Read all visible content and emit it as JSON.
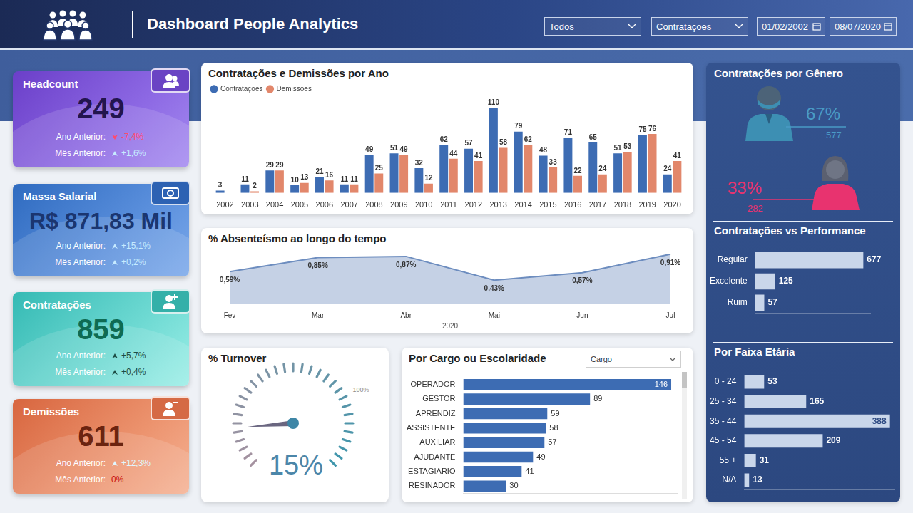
{
  "header": {
    "title": "Dashboard People Analytics",
    "filters": [
      "Todos",
      "Contratações",
      "01/02/2002",
      "08/07/2020"
    ]
  },
  "kpis": [
    {
      "title": "Headcount",
      "value": "249",
      "rows": [
        {
          "label": "Ano Anterior:",
          "value": "-7,4%"
        },
        {
          "label": "Mês Anterior:",
          "value": "+1,6%"
        }
      ]
    },
    {
      "title": "Massa Salarial",
      "value": "R$ 871,83 Mil",
      "rows": [
        {
          "label": "Ano Anterior:",
          "value": "+15,1%"
        },
        {
          "label": "Mês Anterior:",
          "value": "+0,2%"
        }
      ]
    },
    {
      "title": "Contratações",
      "value": "859",
      "rows": [
        {
          "label": "Ano Anterior:",
          "value": "+5,7%"
        },
        {
          "label": "Mês Anterior:",
          "value": "+0,4%"
        }
      ]
    },
    {
      "title": "Demissões",
      "value": "611",
      "rows": [
        {
          "label": "Ano Anterior:",
          "value": "+12,3%"
        },
        {
          "label": "Mês Anterior:",
          "value": "0%"
        }
      ]
    }
  ],
  "turnover": {
    "title": "% Turnover",
    "value": 15,
    "value_label": "15%",
    "max": 100,
    "max_label": "100%"
  },
  "genero": {
    "title": "Contratações por Gênero",
    "items": [
      {
        "percent": "67%",
        "count": "577",
        "color": "#4a9bc6"
      },
      {
        "percent": "33%",
        "count": "282",
        "color": "#e8336f"
      }
    ]
  },
  "chart_data": [
    {
      "type": "bar",
      "title": "Contratações e Demissões por Ano",
      "categories": [
        "2002",
        "2003",
        "2004",
        "2005",
        "2006",
        "2007",
        "2008",
        "2009",
        "2010",
        "2011",
        "2012",
        "2013",
        "2014",
        "2015",
        "2016",
        "2017",
        "2018",
        "2019",
        "2020"
      ],
      "series": [
        {
          "name": "Contratações",
          "color": "#3d6cb3",
          "values": [
            3,
            11,
            29,
            10,
            21,
            11,
            49,
            51,
            32,
            62,
            57,
            110,
            79,
            48,
            71,
            65,
            51,
            75,
            24
          ]
        },
        {
          "name": "Demissões",
          "color": "#e2876b",
          "values": [
            null,
            2,
            29,
            13,
            16,
            11,
            25,
            49,
            12,
            44,
            41,
            58,
            62,
            33,
            22,
            24,
            53,
            76,
            41
          ]
        }
      ],
      "ylim": [
        0,
        120
      ],
      "data_labels": true,
      "legend": "top-left",
      "tick_labels": "x",
      "grid": false
    },
    {
      "type": "line",
      "title": "% Absenteísmo ao longo do tempo",
      "categories": [
        "Fev",
        "Mar",
        "Abr",
        "Mai",
        "Jun",
        "Jul"
      ],
      "xlabel": "2020",
      "values": [
        0.59,
        0.85,
        0.87,
        0.43,
        0.57,
        0.91
      ],
      "value_labels": [
        "0,59%",
        "0,85%",
        "0,87%",
        "0,43%",
        "0,57%",
        "0,91%"
      ],
      "color": "#6d8dbf",
      "ylim": [
        0,
        1
      ],
      "data_labels": true,
      "tick_labels": "x",
      "grid": false
    },
    {
      "type": "bar",
      "orientation": "horizontal",
      "title": "Por Cargo ou Escolaridade",
      "selector": "Cargo",
      "categories": [
        "OPERADOR",
        "GESTOR",
        "APRENDIZ",
        "ASSISTENTE",
        "AUXILIAR",
        "AJUDANTE",
        "ESTAGIARIO",
        "RESINADOR"
      ],
      "values": [
        146,
        89,
        59,
        58,
        57,
        49,
        41,
        30
      ],
      "color": "#3d6cb3",
      "xlim": [
        0,
        150
      ],
      "data_labels": true,
      "tick_labels": "y",
      "grid": false
    },
    {
      "type": "bar",
      "orientation": "horizontal",
      "title": "Contratações vs Performance",
      "categories": [
        "Regular",
        "Excelente",
        "Ruim"
      ],
      "values": [
        677,
        125,
        57
      ],
      "color": "#c9d6ea",
      "xlim": [
        0,
        720
      ],
      "data_labels": true,
      "tick_labels": "y",
      "grid": false
    },
    {
      "type": "bar",
      "orientation": "horizontal",
      "title": "Por Faixa Etária",
      "categories": [
        "0 - 24",
        "25 - 34",
        "35 - 44",
        "45 - 54",
        "55 +",
        "N/A"
      ],
      "values": [
        53,
        165,
        388,
        209,
        31,
        13
      ],
      "color": "#c9d6ea",
      "xlim": [
        0,
        400
      ],
      "data_labels": true,
      "tick_labels": "y",
      "grid": false
    }
  ]
}
